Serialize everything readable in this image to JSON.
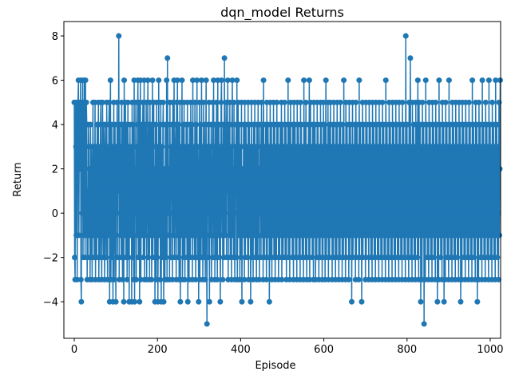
{
  "chart_data": {
    "type": "line",
    "title": "dqn_model Returns",
    "xlabel": "Episode",
    "ylabel": "Return",
    "xlim": [
      -25,
      1025
    ],
    "ylim": [
      -5.65,
      8.65
    ],
    "xticks": [
      0,
      200,
      400,
      600,
      800,
      1000
    ],
    "yticks": [
      -4,
      -2,
      0,
      2,
      4,
      6,
      8
    ],
    "grid": false,
    "legend": "none",
    "series_color": "#1f77b4",
    "marker": "circle",
    "series": [
      {
        "x_start": 0,
        "x_step": 1,
        "values": [
          5,
          -2,
          -3,
          5,
          3,
          -1,
          5,
          -3,
          2,
          5,
          6,
          -1,
          3,
          5,
          2,
          6,
          -3,
          -4,
          5,
          0,
          6,
          -2,
          5,
          -1,
          6,
          3,
          -2,
          6,
          -1,
          5,
          4,
          -3,
          1,
          -2,
          4,
          3,
          -1,
          2,
          -3,
          4,
          -2,
          3,
          1,
          -3,
          2,
          5,
          -1,
          3,
          -2,
          0,
          5,
          -3,
          1,
          3,
          -2,
          4,
          -1,
          2,
          5,
          -3,
          0,
          3,
          -2,
          4,
          5,
          -1,
          -3,
          2,
          5,
          0,
          -2,
          4,
          3,
          -3,
          -1,
          4,
          2,
          -2,
          5,
          0,
          -3,
          3,
          -1,
          4,
          5,
          -4,
          2,
          6,
          -3,
          0,
          4,
          -2,
          3,
          -4,
          1,
          5,
          -3,
          2,
          4,
          -1,
          -4,
          3,
          0,
          5,
          -2,
          4,
          1,
          8,
          -3,
          2,
          4,
          -1,
          3,
          -2,
          5,
          0,
          -3,
          4,
          2,
          -4,
          6,
          -1,
          3,
          5,
          -2,
          0,
          4,
          -3,
          1,
          5,
          -2,
          3,
          -4,
          2,
          4,
          -1,
          0,
          3,
          -4,
          5,
          -2,
          4,
          1,
          -3,
          6,
          -4,
          2,
          0,
          5,
          -3,
          3,
          -1,
          4,
          6,
          -2,
          1,
          5,
          -4,
          2,
          6,
          -3,
          0,
          4,
          -1,
          3,
          5,
          -2,
          2,
          6,
          -3,
          1,
          4,
          -1,
          5,
          -3,
          0,
          3,
          6,
          -2,
          4,
          1,
          -3,
          5,
          -1,
          2,
          4,
          -3,
          0,
          6,
          -2,
          3,
          5,
          -1,
          2,
          -4,
          4,
          1,
          -3,
          5,
          -2,
          3,
          -4,
          0,
          6,
          -1,
          4,
          2,
          -3,
          5,
          -4,
          1,
          3,
          -2,
          4,
          5,
          -4,
          0,
          2,
          -3,
          4,
          1,
          -2,
          6,
          -3,
          7,
          0,
          4,
          -1,
          2,
          -3,
          5,
          0,
          -2,
          3,
          1,
          4,
          -3,
          5,
          -1,
          2,
          6,
          -2,
          0,
          3,
          4,
          -3,
          5,
          -1,
          6,
          2,
          -2,
          4,
          -3,
          0,
          5,
          -4,
          2,
          3,
          -1,
          6,
          -3,
          1,
          4,
          -2,
          5,
          0,
          -3,
          3,
          -1,
          4,
          2,
          -2,
          5,
          -4,
          1,
          3,
          -3,
          4,
          0,
          -2,
          5,
          -1,
          2,
          4,
          -3,
          6,
          -1,
          3,
          0,
          -2,
          5,
          1,
          -3,
          4,
          -1,
          6,
          -2,
          3,
          0,
          -4,
          2,
          5,
          -3,
          1,
          4,
          -2,
          6,
          -1,
          3,
          -3,
          0,
          5,
          -2,
          4,
          1,
          -3,
          2,
          6,
          -1,
          -5,
          3,
          0,
          4,
          -2,
          5,
          -4,
          1,
          3,
          -1,
          4,
          -3,
          0,
          2,
          5,
          -2,
          6,
          -1,
          3,
          -3,
          4,
          1,
          -2,
          5,
          0,
          -3,
          6,
          -1,
          2,
          4,
          -2,
          3,
          -4,
          0,
          5,
          6,
          -1,
          3,
          -3,
          4,
          2,
          -2,
          7,
          0,
          -1,
          3,
          5,
          -2,
          4,
          1,
          6,
          -3,
          2,
          4,
          -1,
          5,
          -2,
          0,
          3,
          -3,
          4,
          6,
          -1,
          2,
          -2,
          5,
          0,
          -3,
          3,
          1,
          4,
          -2,
          6,
          -3,
          0,
          5,
          -1,
          2,
          4,
          -3,
          1,
          3,
          -2,
          5,
          -4,
          0,
          2,
          -1,
          4,
          3,
          -3,
          5,
          -2,
          1,
          4,
          -1,
          3,
          0,
          -2,
          5,
          -3,
          2,
          4,
          -1,
          3,
          -4,
          0,
          5,
          -2,
          1,
          3,
          -3,
          4,
          2,
          -1,
          5,
          -2,
          0,
          3,
          -3,
          4,
          1,
          -2,
          5,
          -1,
          2,
          -3,
          4,
          0,
          3,
          -2,
          5,
          -1,
          2,
          4,
          -3,
          6,
          1,
          -2,
          3,
          -1,
          4,
          0,
          -3,
          5,
          -2,
          2,
          4,
          -1,
          3,
          -4,
          0,
          5,
          -2,
          1,
          4,
          -3,
          2,
          3,
          -1,
          5,
          -2,
          0,
          4,
          -3,
          1,
          3,
          -2,
          5,
          -1,
          2,
          4,
          -3,
          0,
          3,
          -2,
          4,
          1,
          -1,
          5,
          -3,
          2,
          4,
          -2,
          0,
          3,
          -1,
          5,
          -2,
          1,
          4,
          -3,
          2,
          3,
          -1,
          6,
          -2,
          0,
          4,
          -3,
          1,
          5,
          -1,
          2,
          3,
          -2,
          4,
          0,
          -3,
          5,
          -1,
          2,
          4,
          -2,
          3,
          1,
          -3,
          5,
          -1,
          0,
          4,
          -2,
          3,
          2,
          -3,
          5,
          -1,
          4,
          0,
          -2,
          3,
          1,
          -3,
          6,
          -1,
          2,
          4,
          -2,
          5,
          0,
          -3,
          3,
          1,
          -1,
          4,
          -2,
          6,
          -3,
          0,
          5,
          -1,
          2,
          3,
          -2,
          4,
          1,
          -3,
          5,
          -1,
          2,
          4,
          -3,
          0,
          3,
          -2,
          5,
          -1,
          4,
          2,
          -3,
          3,
          0,
          -2,
          5,
          -1,
          4,
          1,
          -3,
          3,
          -2,
          5,
          0,
          -1,
          4,
          -3,
          2,
          6,
          -2,
          0,
          3,
          -1,
          5,
          -3,
          1,
          4,
          -2,
          2,
          5,
          -1,
          0,
          3,
          -3,
          4,
          1,
          -2,
          5,
          -1,
          3,
          0,
          -3,
          4,
          2,
          -2,
          5,
          -1,
          3,
          1,
          -3,
          4,
          0,
          -2,
          5,
          -1,
          2,
          3,
          -3,
          4,
          0,
          -2,
          6,
          -1,
          3,
          1,
          -3,
          5,
          -2,
          2,
          4,
          -1,
          0,
          3,
          -3,
          5,
          -2,
          1,
          4,
          -1,
          3,
          -4,
          2,
          5,
          -2,
          0,
          3,
          -1,
          4,
          1,
          -3,
          5,
          -2,
          2,
          4,
          -1,
          0,
          3,
          -3,
          6,
          -2,
          1,
          4,
          -1,
          3,
          -4,
          0,
          5,
          -2,
          2,
          4,
          -1,
          3,
          1,
          -3,
          5,
          -2,
          0,
          4,
          -1,
          3,
          2,
          -3,
          5,
          -1,
          0,
          4,
          -2,
          3,
          1,
          -3,
          5,
          -1,
          2,
          4,
          -2,
          0,
          3,
          -3,
          5,
          -1,
          2,
          4,
          -2,
          1,
          3,
          -3,
          5,
          -1,
          0,
          4,
          -2,
          3,
          2,
          -3,
          5,
          -1,
          0,
          4,
          -2,
          3,
          1,
          -3,
          6,
          -1,
          2,
          4,
          -2,
          0,
          3,
          -3,
          5,
          -1,
          2,
          4,
          -2,
          1,
          3,
          -3,
          5,
          -1,
          0,
          4,
          -2,
          3,
          2,
          -3,
          5,
          -1,
          1,
          4,
          -2,
          3,
          0,
          -3,
          5,
          -1,
          2,
          4,
          -2,
          1,
          3,
          -3,
          5,
          -1,
          0,
          4,
          -2,
          3,
          2,
          -3,
          8,
          -1,
          1,
          4,
          -2,
          3,
          0,
          -3,
          5,
          -1,
          2,
          7,
          -2,
          1,
          3,
          -3,
          5,
          -1,
          0,
          4,
          -2,
          3,
          2,
          -3,
          5,
          -1,
          1,
          4,
          -2,
          6,
          0,
          -3,
          5,
          -1,
          2,
          4,
          -4,
          1,
          3,
          -3,
          5,
          -1,
          0,
          4,
          -5,
          3,
          2,
          -3,
          6,
          -1,
          1,
          4,
          -2,
          3,
          0,
          -3,
          5,
          -1,
          2,
          4,
          -2,
          1,
          3,
          -3,
          5,
          -1,
          0,
          4,
          -2,
          3,
          2,
          -3,
          5,
          -1,
          1,
          4,
          -4,
          3,
          0,
          -3,
          6,
          -1,
          2,
          4,
          -2,
          1,
          3,
          -3,
          5,
          -1,
          0,
          4,
          -4,
          3,
          2,
          -3,
          5,
          -1,
          1,
          4,
          -2,
          3,
          0,
          -3,
          6,
          -1,
          2,
          4,
          -2,
          1,
          3,
          -3,
          5,
          -1,
          0,
          4,
          -2,
          3,
          2,
          -3,
          5,
          -1,
          1,
          4,
          -2,
          3,
          0,
          -3,
          5,
          -1,
          2,
          4,
          -4,
          1,
          3,
          -3,
          5,
          -1,
          0,
          4,
          -2,
          3,
          2,
          -3,
          5,
          -1,
          1,
          4,
          -2,
          3,
          0,
          -3,
          5,
          -1,
          2,
          4,
          -2,
          1,
          3,
          -3,
          6,
          -1,
          0,
          4,
          -2,
          3,
          2,
          -3,
          5,
          -1,
          1,
          4,
          -4,
          3,
          0,
          -3,
          5,
          -1,
          2,
          4,
          -2,
          1,
          3,
          -3,
          6,
          -1,
          0,
          4,
          -2,
          3,
          2,
          -3,
          5,
          -1,
          1,
          4,
          -2,
          3,
          0,
          -3,
          6,
          -1,
          2,
          4,
          -2,
          1,
          3,
          -3,
          5,
          -1,
          0,
          4,
          -2,
          3,
          2,
          -3,
          6,
          -1,
          1,
          4,
          -2,
          3,
          0,
          -3,
          5,
          -1,
          2,
          6
        ]
      }
    ]
  }
}
